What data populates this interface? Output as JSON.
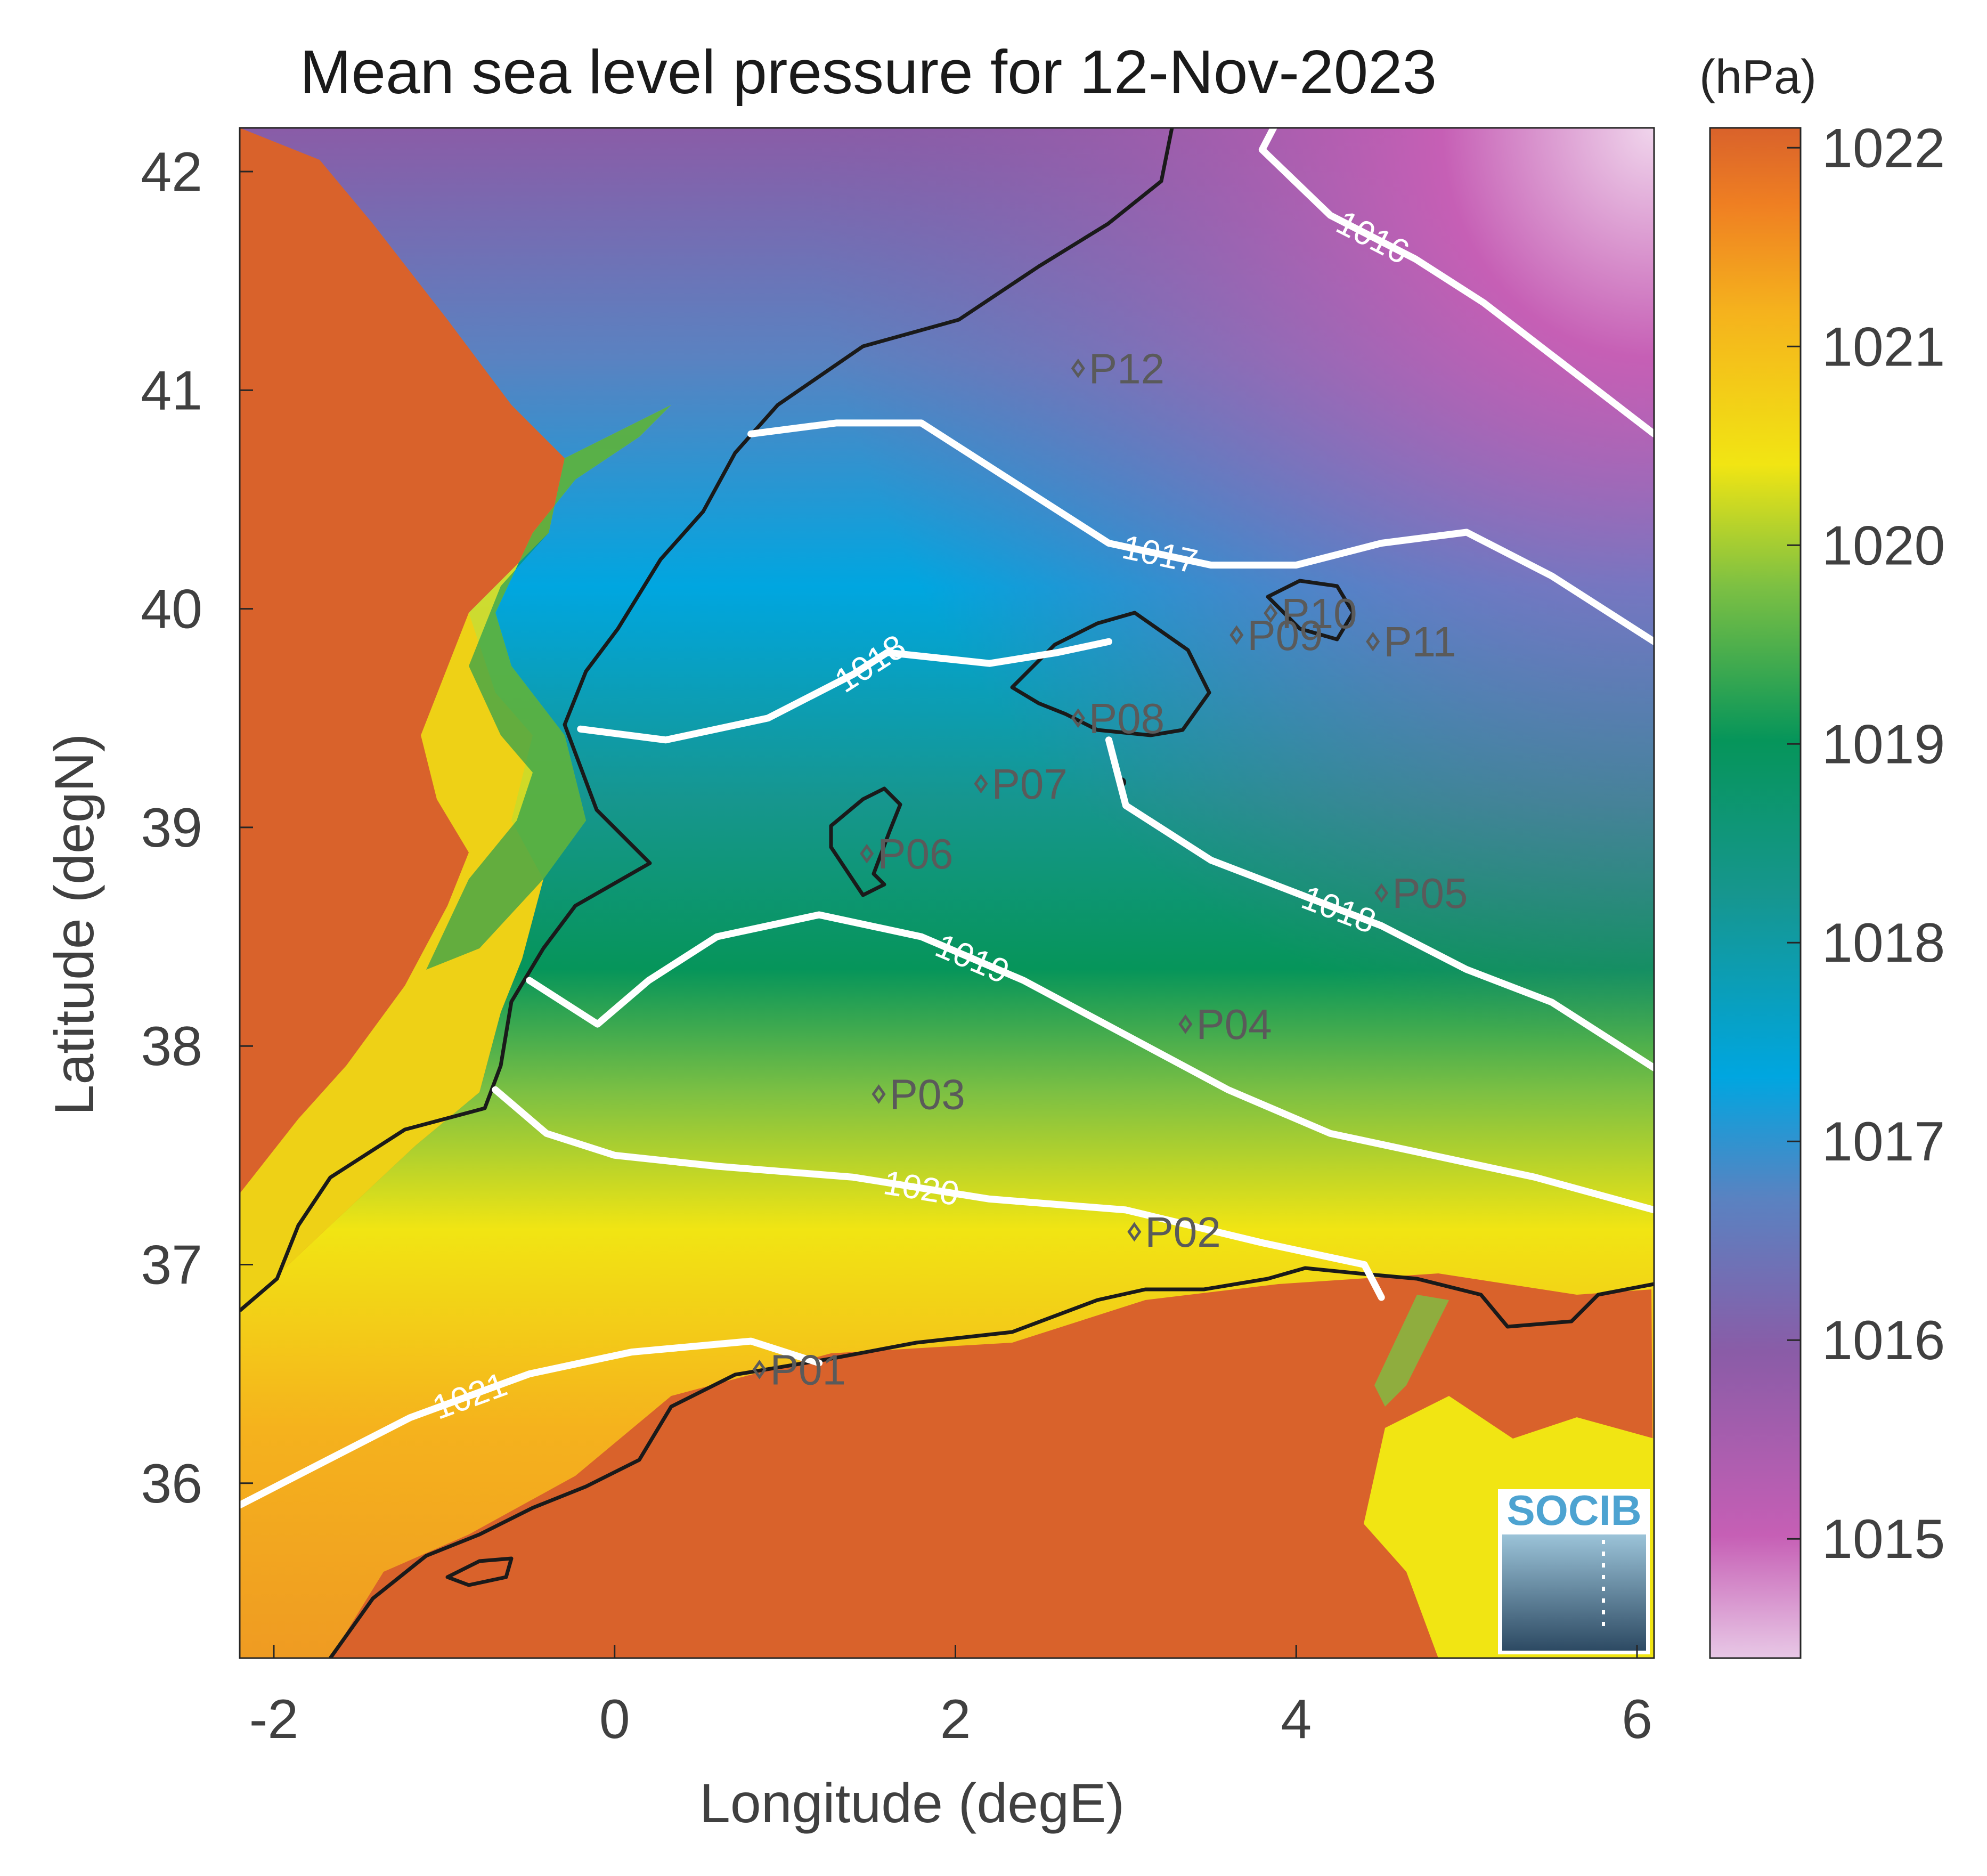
{
  "chart_data": {
    "type": "heatmap",
    "title": "Mean sea level pressure for 12-Nov-2023",
    "xlabel": "Longitude (degE)",
    "ylabel": "Latitude (degN)",
    "xlim": [
      -2.2,
      6.1
    ],
    "ylim": [
      35.2,
      42.2
    ],
    "xticks": [
      -2,
      0,
      2,
      4,
      6
    ],
    "yticks": [
      36,
      37,
      38,
      39,
      40,
      41,
      42
    ],
    "colorbar": {
      "unit": "(hPa)",
      "range": [
        1014.4,
        1022.1
      ],
      "ticks": [
        1015,
        1016,
        1017,
        1018,
        1019,
        1020,
        1021,
        1022
      ],
      "colors": [
        "#e8c8e6",
        "#c65fb5",
        "#8a5ca7",
        "#5a82c1",
        "#00a6e0",
        "#16968e",
        "#06955a",
        "#7cc043",
        "#f1e513",
        "#f5b21d",
        "#ef7f22",
        "#d9622b"
      ]
    },
    "contours": [
      {
        "level": 1016,
        "label": "1016",
        "points": [
          [
            3.9,
            42.25
          ],
          [
            3.8,
            42.1
          ],
          [
            4.2,
            41.8
          ],
          [
            4.7,
            41.6
          ],
          [
            5.1,
            41.4
          ],
          [
            5.6,
            41.1
          ],
          [
            6.1,
            40.8
          ]
        ]
      },
      {
        "level": 1017,
        "label": "1017",
        "points": [
          [
            0.8,
            40.8
          ],
          [
            1.3,
            40.85
          ],
          [
            1.8,
            40.85
          ],
          [
            2.3,
            40.6
          ],
          [
            2.9,
            40.3
          ],
          [
            3.5,
            40.2
          ],
          [
            4.0,
            40.2
          ],
          [
            4.5,
            40.3
          ],
          [
            5.0,
            40.35
          ],
          [
            5.5,
            40.15
          ],
          [
            6.1,
            39.85
          ]
        ]
      },
      {
        "level": 1018,
        "label": "1018",
        "points": [
          [
            -0.2,
            39.45
          ],
          [
            0.3,
            39.4
          ],
          [
            0.9,
            39.5
          ],
          [
            1.4,
            39.7
          ],
          [
            1.6,
            39.8
          ],
          [
            2.2,
            39.75
          ],
          [
            2.6,
            39.8
          ],
          [
            2.9,
            39.85
          ]
        ]
      },
      {
        "level": 1018,
        "label": "1018",
        "points": [
          [
            2.9,
            39.4
          ],
          [
            3.0,
            39.1
          ],
          [
            3.5,
            38.85
          ],
          [
            4.0,
            38.7
          ],
          [
            4.5,
            38.55
          ],
          [
            5.0,
            38.35
          ],
          [
            5.5,
            38.2
          ],
          [
            6.1,
            37.9
          ]
        ]
      },
      {
        "level": 1019,
        "label": "1019",
        "points": [
          [
            -0.5,
            38.3
          ],
          [
            -0.1,
            38.1
          ],
          [
            0.2,
            38.3
          ],
          [
            0.6,
            38.5
          ],
          [
            1.2,
            38.6
          ],
          [
            1.8,
            38.5
          ],
          [
            2.4,
            38.3
          ],
          [
            3.0,
            38.05
          ],
          [
            3.6,
            37.8
          ],
          [
            4.2,
            37.6
          ],
          [
            4.8,
            37.5
          ],
          [
            5.4,
            37.4
          ],
          [
            6.1,
            37.25
          ]
        ]
      },
      {
        "level": 1020,
        "label": "1020",
        "points": [
          [
            -0.7,
            37.8
          ],
          [
            -0.4,
            37.6
          ],
          [
            0.0,
            37.5
          ],
          [
            0.6,
            37.45
          ],
          [
            1.4,
            37.4
          ],
          [
            2.2,
            37.3
          ],
          [
            3.0,
            37.25
          ],
          [
            3.8,
            37.1
          ],
          [
            4.4,
            37.0
          ],
          [
            4.5,
            36.85
          ]
        ]
      },
      {
        "level": 1021,
        "label": "1021",
        "points": [
          [
            -2.2,
            35.9
          ],
          [
            -1.7,
            36.1
          ],
          [
            -1.2,
            36.3
          ],
          [
            -0.5,
            36.5
          ],
          [
            0.1,
            36.6
          ],
          [
            0.8,
            36.65
          ],
          [
            1.2,
            36.55
          ]
        ]
      }
    ],
    "points": [
      {
        "name": "P01",
        "lon": 0.85,
        "lat": 36.52
      },
      {
        "name": "P02",
        "lon": 3.05,
        "lat": 37.15
      },
      {
        "name": "P03",
        "lon": 1.55,
        "lat": 37.78
      },
      {
        "name": "P04",
        "lon": 3.35,
        "lat": 38.1
      },
      {
        "name": "P05",
        "lon": 4.5,
        "lat": 38.7
      },
      {
        "name": "P06",
        "lon": 1.48,
        "lat": 38.88
      },
      {
        "name": "P07",
        "lon": 2.15,
        "lat": 39.2
      },
      {
        "name": "P08",
        "lon": 2.72,
        "lat": 39.5
      },
      {
        "name": "P09",
        "lon": 3.65,
        "lat": 39.88
      },
      {
        "name": "P10",
        "lon": 3.85,
        "lat": 39.98
      },
      {
        "name": "P11",
        "lon": 4.45,
        "lat": 39.85
      },
      {
        "name": "P12",
        "lon": 2.72,
        "lat": 41.1
      }
    ]
  },
  "logo": {
    "text": "SOCIB"
  }
}
